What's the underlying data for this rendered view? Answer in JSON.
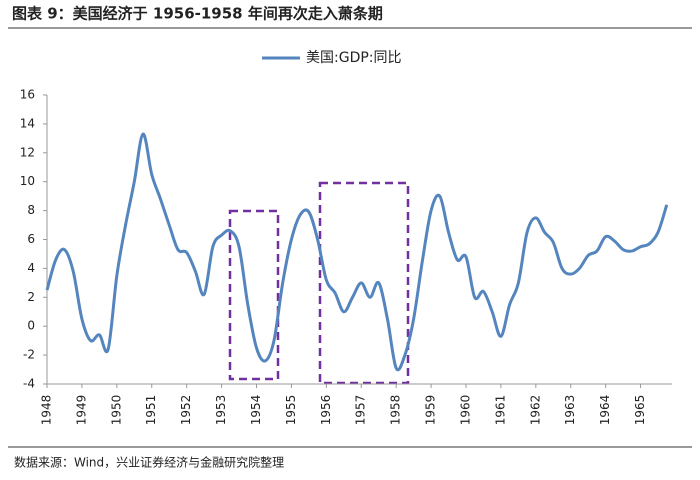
{
  "chart_data": {
    "type": "line",
    "title": "图表 9：美国经济于 1956-1958 年间再次走入萧条期",
    "source": "数据来源：Wind，兴业证券经济与金融研究院整理",
    "x": [
      1948,
      1948.25,
      1948.5,
      1948.75,
      1949,
      1949.25,
      1949.5,
      1949.75,
      1950,
      1950.25,
      1950.5,
      1950.75,
      1951,
      1951.25,
      1951.5,
      1951.75,
      1952,
      1952.25,
      1952.5,
      1952.75,
      1953,
      1953.25,
      1953.5,
      1953.75,
      1954,
      1954.25,
      1954.5,
      1954.75,
      1955,
      1955.25,
      1955.5,
      1955.75,
      1956,
      1956.25,
      1956.5,
      1956.75,
      1957,
      1957.25,
      1957.5,
      1957.75,
      1958,
      1958.25,
      1958.5,
      1958.75,
      1959,
      1959.25,
      1959.5,
      1959.75,
      1960,
      1960.25,
      1960.5,
      1960.75,
      1961,
      1961.25,
      1961.5,
      1961.75,
      1962,
      1962.25,
      1962.5,
      1962.75,
      1963,
      1963.25,
      1963.5,
      1963.75,
      1964,
      1964.25,
      1964.5,
      1964.75,
      1965,
      1965.25,
      1965.5,
      1965.75
    ],
    "series": [
      {
        "name": "美国:GDP:同比",
        "color": "#5585be",
        "values": [
          2.5,
          4.6,
          5.3,
          3.8,
          0.5,
          -1.0,
          -0.6,
          -1.6,
          3.5,
          7.0,
          10.0,
          13.3,
          10.5,
          8.8,
          7.0,
          5.3,
          5.1,
          3.8,
          2.2,
          5.5,
          6.3,
          6.6,
          5.5,
          1.5,
          -1.5,
          -2.4,
          -1.0,
          3.0,
          6.0,
          7.7,
          7.9,
          6.0,
          3.2,
          2.3,
          1.0,
          2.0,
          3.0,
          2.0,
          3.0,
          0.5,
          -2.9,
          -2.0,
          0.5,
          4.5,
          8.0,
          9.0,
          6.5,
          4.6,
          4.8,
          2.0,
          2.4,
          1.0,
          -0.7,
          1.5,
          3.0,
          6.5,
          7.5,
          6.5,
          5.8,
          4.0,
          3.6,
          4.0,
          4.9,
          5.2,
          6.2,
          5.9,
          5.3,
          5.2,
          5.5,
          5.7,
          6.5,
          8.4
        ]
      }
    ],
    "xlim": [
      1948,
      1965.9
    ],
    "xticks": [
      1948,
      1949,
      1950,
      1951,
      1952,
      1953,
      1954,
      1955,
      1956,
      1957,
      1958,
      1959,
      1960,
      1961,
      1962,
      1963,
      1964,
      1965
    ],
    "ylim": [
      -4,
      16
    ],
    "yticks": [
      -4,
      -2,
      0,
      2,
      4,
      6,
      8,
      10,
      12,
      14,
      16
    ],
    "grid": false
  }
}
